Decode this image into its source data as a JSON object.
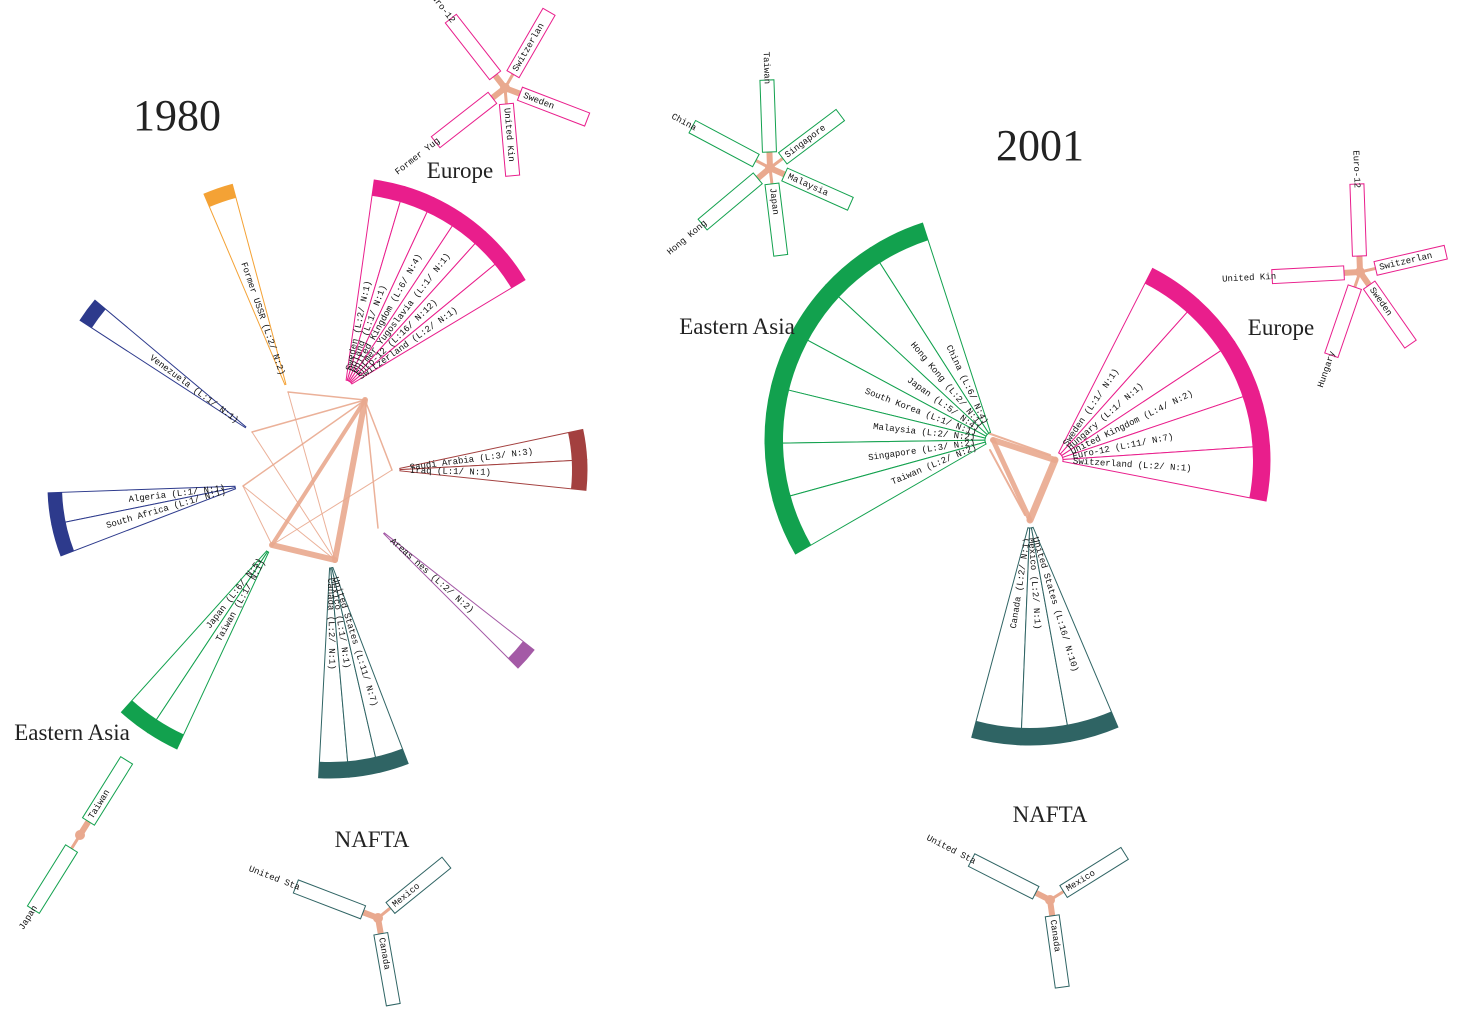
{
  "panels": [
    {
      "year": "1980",
      "groups": [
        {
          "label": "Europe",
          "color": "#e91e8c",
          "items": [
            "Sweden (L:2/ N:1)",
            "Poland (L:1/ N:1)",
            "United Kingdom (L:6/ N:4)",
            "Former Yugoslavia (L:1/ N:1)",
            "Euro-12 (L:16/ N:12)",
            "Switzerland (L:2/ N:1)"
          ]
        },
        {
          "color": "#f4a235",
          "items": [
            "Former USSR (L:2/ N:2)"
          ]
        },
        {
          "color": "#2d3a8c",
          "items": [
            "Venezuela (L:1/ N:1)"
          ]
        },
        {
          "color": "#2d3a8c",
          "items": [
            "Algeria (L:1/ N:1)",
            "South Africa (L:1/ N:1)"
          ]
        },
        {
          "color": "#a3403f",
          "items": [
            "Saudi Arabia (L:3/ N:3)",
            "Iraq (L:1/ N:1)"
          ]
        },
        {
          "color": "#a45aa6",
          "items": [
            "Areas nes (L:2/ N:2)"
          ]
        },
        {
          "label": "NAFTA",
          "color": "#2f6464",
          "items": [
            "Canada (L:2/ N:1)",
            "Mexico (L:1/ N:1)",
            "United States (L:11/ N:7)"
          ]
        },
        {
          "label": "Eastern Asia",
          "color": "#12a14e",
          "items": [
            "Japan (L:6/ N:5)",
            "Taiwan (L:1/ N:1)"
          ]
        }
      ],
      "stars": [
        {
          "color": "#e91e8c",
          "items": [
            "Euro-12",
            "Switzerlan",
            "Sweden",
            "United Kin",
            "Former Yug"
          ]
        },
        {
          "color": "#12a14e",
          "items": [
            "Taiwan",
            "Japan"
          ]
        },
        {
          "color": "#2f6464",
          "items": [
            "United Sta",
            "Mexico",
            "Canada"
          ]
        }
      ]
    },
    {
      "year": "2001",
      "groups": [
        {
          "label": "Eastern Asia",
          "color": "#12a14e",
          "items": [
            "China (L:6/ N:4)",
            "Hong Kong (L:2/ N:1)",
            "Japan (L:5/ N:4)",
            "South Korea (L:1/ N:1)",
            "Malaysia (L:2/ N:2)",
            "Singapore (L:3/ N:2)",
            "Taiwan (L:2/ N:2)"
          ]
        },
        {
          "label": "Europe",
          "color": "#e91e8c",
          "items": [
            "Sweden (L:1/ N:1)",
            "Hungary (L:1/ N:1)",
            "United Kingdom (L:4/ N:2)",
            "Euro-12 (L:11/ N:7)",
            "Switzerland (L:2/ N:1)"
          ]
        },
        {
          "label": "NAFTA",
          "color": "#2f6464",
          "items": [
            "Canada (L:2/ N:1)",
            "Mexico (L:2/ N:1)",
            "United States (L:16/ N:10)"
          ]
        }
      ],
      "stars": [
        {
          "color": "#12a14e",
          "items": [
            "Taiwan",
            "Singapore",
            "Malaysia",
            "Japan",
            "Hong Kong",
            "China"
          ]
        },
        {
          "color": "#e91e8c",
          "items": [
            "Euro-12",
            "Switzerlan",
            "Sweden",
            "Hungary",
            "United Kin"
          ]
        },
        {
          "color": "#2f6464",
          "items": [
            "United Sta",
            "Mexico",
            "Canada"
          ]
        }
      ]
    }
  ]
}
